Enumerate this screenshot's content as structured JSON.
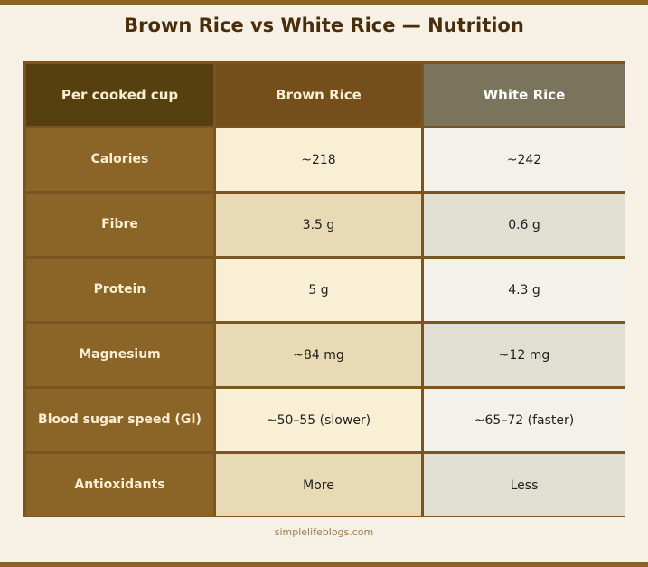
{
  "title": "Brown Rice vs White Rice — Nutrition",
  "table": {
    "headers": [
      "Per cooked cup",
      "Brown Rice",
      "White Rice"
    ],
    "rows": [
      {
        "label": "Calories",
        "brown": "~218",
        "white": "~242"
      },
      {
        "label": "Fibre",
        "brown": "3.5 g",
        "white": "0.6 g"
      },
      {
        "label": "Protein",
        "brown": "5 g",
        "white": "4.3 g"
      },
      {
        "label": "Magnesium",
        "brown": "~84 mg",
        "white": "~12 mg"
      },
      {
        "label": "Blood sugar speed (GI)",
        "brown": "~50–55 (slower)",
        "white": "~65–72 (faster)"
      },
      {
        "label": "Antioxidants",
        "brown": "More",
        "white": "Less"
      }
    ]
  },
  "footer": "simplelifeblogs.com",
  "colors": {
    "accent_bar": "#8a6427",
    "header_label": "#57400f",
    "header_brown": "#744e1b",
    "header_white": "#7b745c",
    "row_label": "#8b6427"
  }
}
